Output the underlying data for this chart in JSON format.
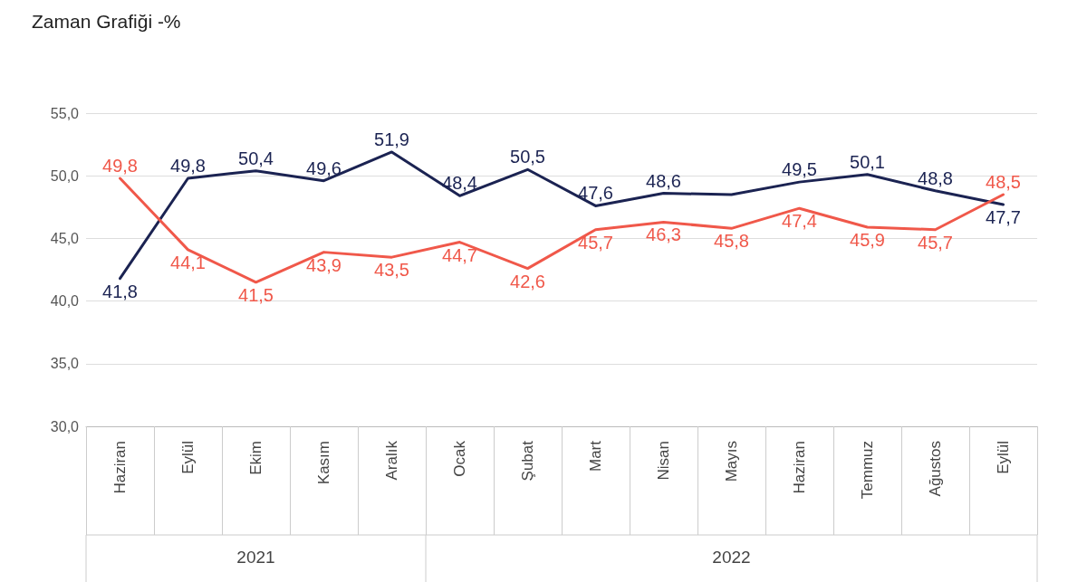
{
  "chart_data": {
    "type": "line",
    "title": "Zaman Grafiği -%",
    "categories": [
      "Haziran",
      "Eylül",
      "Ekim",
      "Kasım",
      "Aralık",
      "Ocak",
      "Şubat",
      "Mart",
      "Nisan",
      "Mayıs",
      "Haziran",
      "Temmuz",
      "Ağustos",
      "Eylül"
    ],
    "series": [
      {
        "color": "#1b2352",
        "values": [
          41.8,
          49.8,
          50.4,
          49.6,
          51.9,
          48.4,
          50.5,
          47.6,
          48.6,
          48.5,
          49.5,
          50.1,
          48.8,
          47.7
        ],
        "value_labels": [
          "41,8",
          "49,8",
          "50,4",
          "49,6",
          "51,9",
          "48,4",
          "50,5",
          "47,6",
          "48,6",
          null,
          "49,5",
          "50,1",
          "48,8",
          "47,7"
        ]
      },
      {
        "color": "#f0584a",
        "values": [
          49.8,
          44.1,
          41.5,
          43.9,
          43.5,
          44.7,
          42.6,
          45.7,
          46.3,
          45.8,
          47.4,
          45.9,
          45.7,
          48.5
        ],
        "value_labels": [
          "49,8",
          "44,1",
          "41,5",
          "43,9",
          "43,5",
          "44,7",
          "42,6",
          "45,7",
          "46,3",
          "45,8",
          "47,4",
          "45,9",
          "45,7",
          "48,5"
        ]
      }
    ],
    "ylim": [
      30,
      55
    ],
    "yticks": [
      {
        "value": 30,
        "label": "30,0"
      },
      {
        "value": 35,
        "label": "35,0"
      },
      {
        "value": 40,
        "label": "40,0"
      },
      {
        "value": 45,
        "label": "45,0"
      },
      {
        "value": 50,
        "label": "50,0"
      },
      {
        "value": 55,
        "label": "55,0"
      }
    ],
    "grid": "y",
    "marker": "none",
    "line_style": "solid",
    "annotations": [
      "2021",
      "2022"
    ]
  }
}
